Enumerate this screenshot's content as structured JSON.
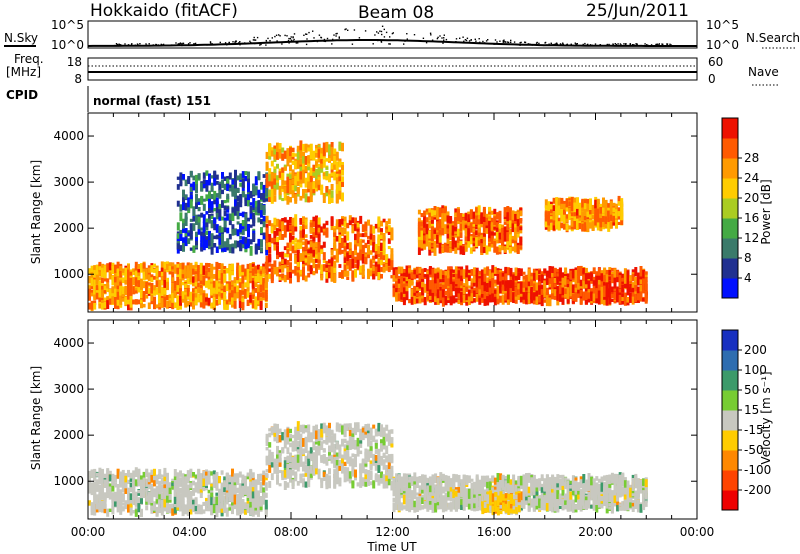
{
  "header": {
    "station": "Hokkaido (fitACF)",
    "beam": "Beam 08",
    "date": "25/Jun/2011"
  },
  "noise_panel": {
    "left_label": "N.Sky",
    "right_label": "N.Search",
    "left_ticks": [
      "10^5",
      "10^0"
    ],
    "right_ticks": [
      "10^5",
      "10^0"
    ]
  },
  "freq_panel": {
    "left_label_1": "Freq.",
    "left_label_2": "[MHz]",
    "right_label": "Nave",
    "left_ticks": [
      "18",
      "8"
    ],
    "right_ticks": [
      "60",
      "0"
    ]
  },
  "cpid": {
    "label": "CPID",
    "value": "normal (fast) 151"
  },
  "x_axis": {
    "title": "Time UT",
    "ticks": [
      "00:00",
      "04:00",
      "08:00",
      "12:00",
      "16:00",
      "20:00",
      "00:00"
    ]
  },
  "y_axis": {
    "title": "Slant Range [km]",
    "ticks": [
      "1000",
      "2000",
      "3000",
      "4000"
    ]
  },
  "power_colorbar": {
    "title": "Power [dB]",
    "ticks": [
      "4",
      "8",
      "12",
      "16",
      "20",
      "24",
      "28"
    ],
    "colors": [
      "#0010ff",
      "#203090",
      "#3a7a6a",
      "#44aa44",
      "#aacc22",
      "#ffcc00",
      "#ff9a00",
      "#ff5a00",
      "#ee1100"
    ]
  },
  "velocity_colorbar": {
    "title": "Velocity [m s⁻¹]",
    "ticks": [
      "200",
      "100",
      "50",
      "15",
      "-15",
      "-50",
      "-100",
      "-200"
    ],
    "colors": [
      "#1830c0",
      "#2e6db0",
      "#3c9a6a",
      "#77cc33",
      "#c8c8c0",
      "#ffcc00",
      "#ff8800",
      "#ff4400",
      "#ee0000"
    ]
  },
  "chart_data": [
    {
      "type": "heatmap",
      "title": "Power",
      "xlabel": "Time UT",
      "ylabel": "Slant Range [km]",
      "xlim": [
        "00:00",
        "24:00"
      ],
      "ylim": [
        180,
        4500
      ],
      "colorbar_label": "Power [dB]",
      "colorbar_range": [
        0,
        30
      ],
      "echo_regions": [
        {
          "start_hour": 0,
          "end_hour": 7,
          "range_min_km": 300,
          "range_max_km": 1200,
          "level_db": 22
        },
        {
          "start_hour": 3.5,
          "end_hour": 7,
          "range_min_km": 1500,
          "range_max_km": 3200,
          "level_db": 6
        },
        {
          "start_hour": 7,
          "end_hour": 12,
          "range_min_km": 900,
          "range_max_km": 2200,
          "level_db": 24
        },
        {
          "start_hour": 7,
          "end_hour": 10,
          "range_min_km": 2600,
          "range_max_km": 3800,
          "level_db": 20
        },
        {
          "start_hour": 12,
          "end_hour": 22,
          "range_min_km": 400,
          "range_max_km": 1100,
          "level_db": 26
        },
        {
          "start_hour": 13,
          "end_hour": 17,
          "range_min_km": 1500,
          "range_max_km": 2400,
          "level_db": 24
        },
        {
          "start_hour": 18,
          "end_hour": 21,
          "range_min_km": 2000,
          "range_max_km": 2600,
          "level_db": 22
        }
      ]
    },
    {
      "type": "heatmap",
      "title": "Velocity",
      "xlabel": "Time UT",
      "ylabel": "Slant Range [km]",
      "xlim": [
        "00:00",
        "24:00"
      ],
      "ylim": [
        180,
        4500
      ],
      "colorbar_label": "Velocity [m s⁻¹]",
      "colorbar_range": [
        -250,
        250
      ],
      "echo_regions": [
        {
          "start_hour": 0,
          "end_hour": 7,
          "range_min_km": 300,
          "range_max_km": 1200,
          "velocity": 0
        },
        {
          "start_hour": 7,
          "end_hour": 12,
          "range_min_km": 900,
          "range_max_km": 2200,
          "velocity": 0
        },
        {
          "start_hour": 12,
          "end_hour": 22,
          "range_min_km": 400,
          "range_max_km": 1100,
          "velocity": 0
        },
        {
          "start_hour": 15.5,
          "end_hour": 17,
          "range_min_km": 350,
          "range_max_km": 700,
          "velocity": -40
        }
      ]
    }
  ]
}
